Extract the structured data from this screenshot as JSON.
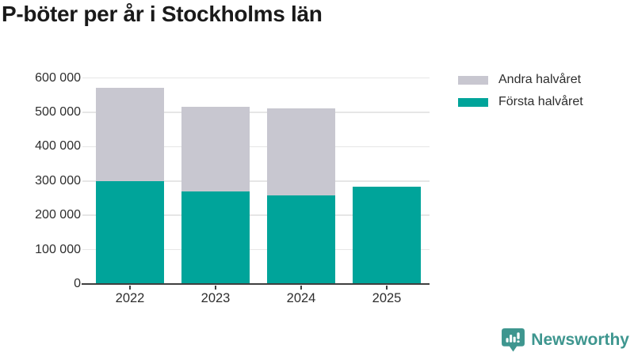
{
  "chart_data": {
    "type": "bar",
    "stacked": true,
    "title": "P-böter per år i Stockholms län",
    "categories": [
      "2022",
      "2023",
      "2024",
      "2025"
    ],
    "series": [
      {
        "name": "Första halvåret",
        "color": "#00a49a",
        "values": [
          300000,
          270000,
          258000,
          283000
        ]
      },
      {
        "name": "Andra halvåret",
        "color": "#c8c7d0",
        "values": [
          272000,
          245000,
          253000,
          null
        ]
      }
    ],
    "ylim": [
      0,
      600000
    ],
    "yticks": [
      {
        "value": 0,
        "label": "0"
      },
      {
        "value": 100000,
        "label": "100 000"
      },
      {
        "value": 200000,
        "label": "200 000"
      },
      {
        "value": 300000,
        "label": "300 000"
      },
      {
        "value": 400000,
        "label": "400 000"
      },
      {
        "value": 500000,
        "label": "500 000"
      },
      {
        "value": 600000,
        "label": "600 000"
      }
    ],
    "xlabel": "",
    "ylabel": "",
    "grid": true,
    "legend_position": "top-right"
  },
  "legend": {
    "items": [
      {
        "label": "Andra halvåret",
        "color": "#c8c7d0"
      },
      {
        "label": "Första halvåret",
        "color": "#00a49a"
      }
    ]
  },
  "footer": {
    "brand": "Newsworthy"
  },
  "colors": {
    "first_half": "#00a49a",
    "second_half": "#c8c7d0",
    "axis": "#3f3f3f",
    "gridline": "#e6e6e6",
    "text": "#2e2e2e",
    "brand": "#3e968f"
  }
}
